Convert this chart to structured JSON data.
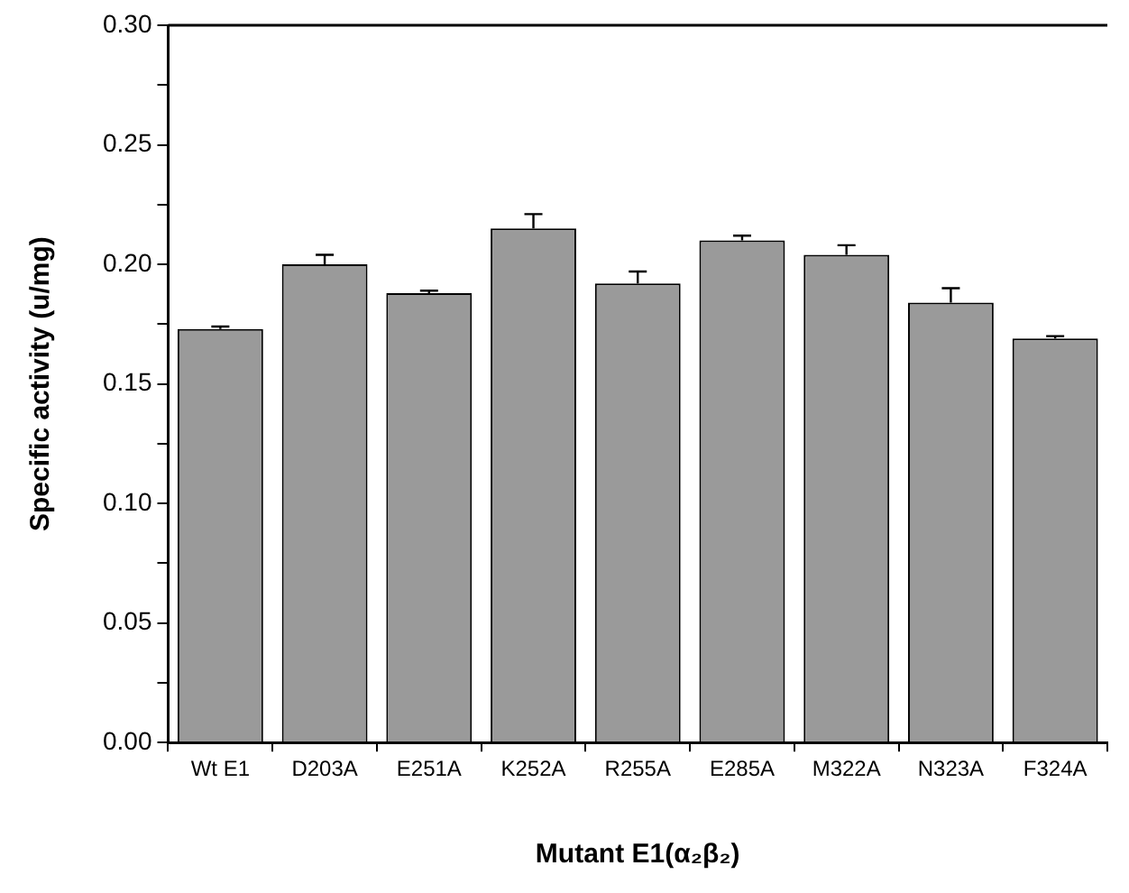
{
  "chart_data": {
    "type": "bar",
    "xlabel": "Mutant E1(α₂β₂)",
    "ylabel": "Specific activity (u/mg)",
    "categories": [
      "Wt E1",
      "D203A",
      "E251A",
      "K252A",
      "R255A",
      "E285A",
      "M322A",
      "N323A",
      "F324A"
    ],
    "values": [
      0.173,
      0.2,
      0.188,
      0.215,
      0.192,
      0.21,
      0.204,
      0.184,
      0.169
    ],
    "errors": [
      [
        0.173,
        0.174
      ],
      [
        0.2,
        0.204
      ],
      [
        0.188,
        0.189
      ],
      [
        0.215,
        0.221
      ],
      [
        0.192,
        0.197
      ],
      [
        0.21,
        0.212
      ],
      [
        0.204,
        0.208
      ],
      [
        0.184,
        0.19
      ],
      [
        0.169,
        0.17
      ]
    ],
    "color": "#9a9a9a",
    "ylim": [
      0,
      0.3
    ],
    "yticks": [
      {
        "value": 0,
        "label": "0.00"
      },
      {
        "value": 0.025,
        "label": null
      },
      {
        "value": 0.05,
        "label": "0.05"
      },
      {
        "value": 0.075,
        "label": null
      },
      {
        "value": 0.1,
        "label": "0.10"
      },
      {
        "value": 0.125,
        "label": null
      },
      {
        "value": 0.15,
        "label": "0.15"
      },
      {
        "value": 0.175,
        "label": null
      },
      {
        "value": 0.2,
        "label": "0.20"
      },
      {
        "value": 0.225,
        "label": null
      },
      {
        "value": 0.25,
        "label": "0.25"
      },
      {
        "value": 0.275,
        "label": null
      },
      {
        "value": 0.3,
        "label": "0.30"
      }
    ],
    "grid": false,
    "legend": false
  }
}
